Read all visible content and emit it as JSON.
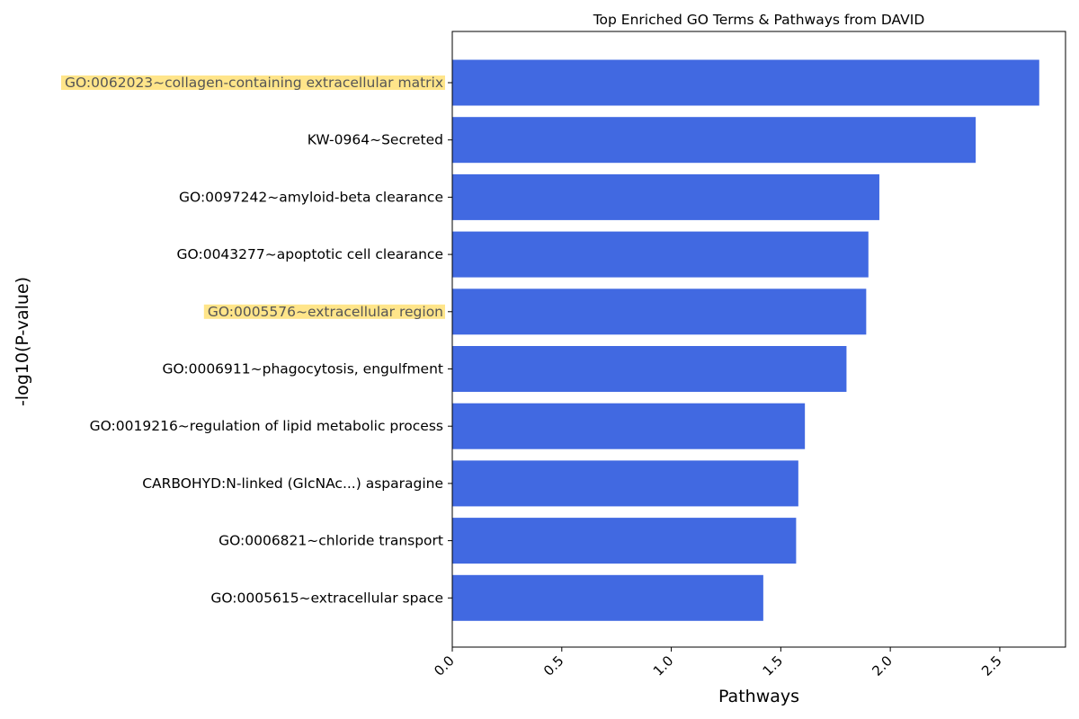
{
  "chart_data": {
    "type": "bar",
    "orientation": "horizontal",
    "title": "Top Enriched GO Terms & Pathways from DAVID",
    "xlabel": "Pathways",
    "ylabel": "-log10(P-value)",
    "xlim": [
      0,
      2.8
    ],
    "xticks": [
      "0.0",
      "0.5",
      "1.0",
      "1.5",
      "2.0",
      "2.5"
    ],
    "tick_rotation_deg": 45,
    "grid": false,
    "bar_color": "#4169E1",
    "highlight_color": "#FFE58A",
    "categories": [
      "GO:0062023~collagen-containing extracellular matrix",
      "KW-0964~Secreted",
      "GO:0097242~amyloid-beta clearance",
      "GO:0043277~apoptotic cell clearance",
      "GO:0005576~extracellular region",
      "GO:0006911~phagocytosis, engulfment",
      "GO:0019216~regulation of lipid metabolic process",
      "CARBOHYD:N-linked (GlcNAc...) asparagine",
      "GO:0006821~chloride transport",
      "GO:0005615~extracellular space"
    ],
    "values": [
      2.68,
      2.39,
      1.95,
      1.9,
      1.89,
      1.8,
      1.61,
      1.58,
      1.57,
      1.42
    ],
    "highlighted": [
      true,
      false,
      false,
      false,
      true,
      false,
      false,
      false,
      false,
      false
    ]
  }
}
